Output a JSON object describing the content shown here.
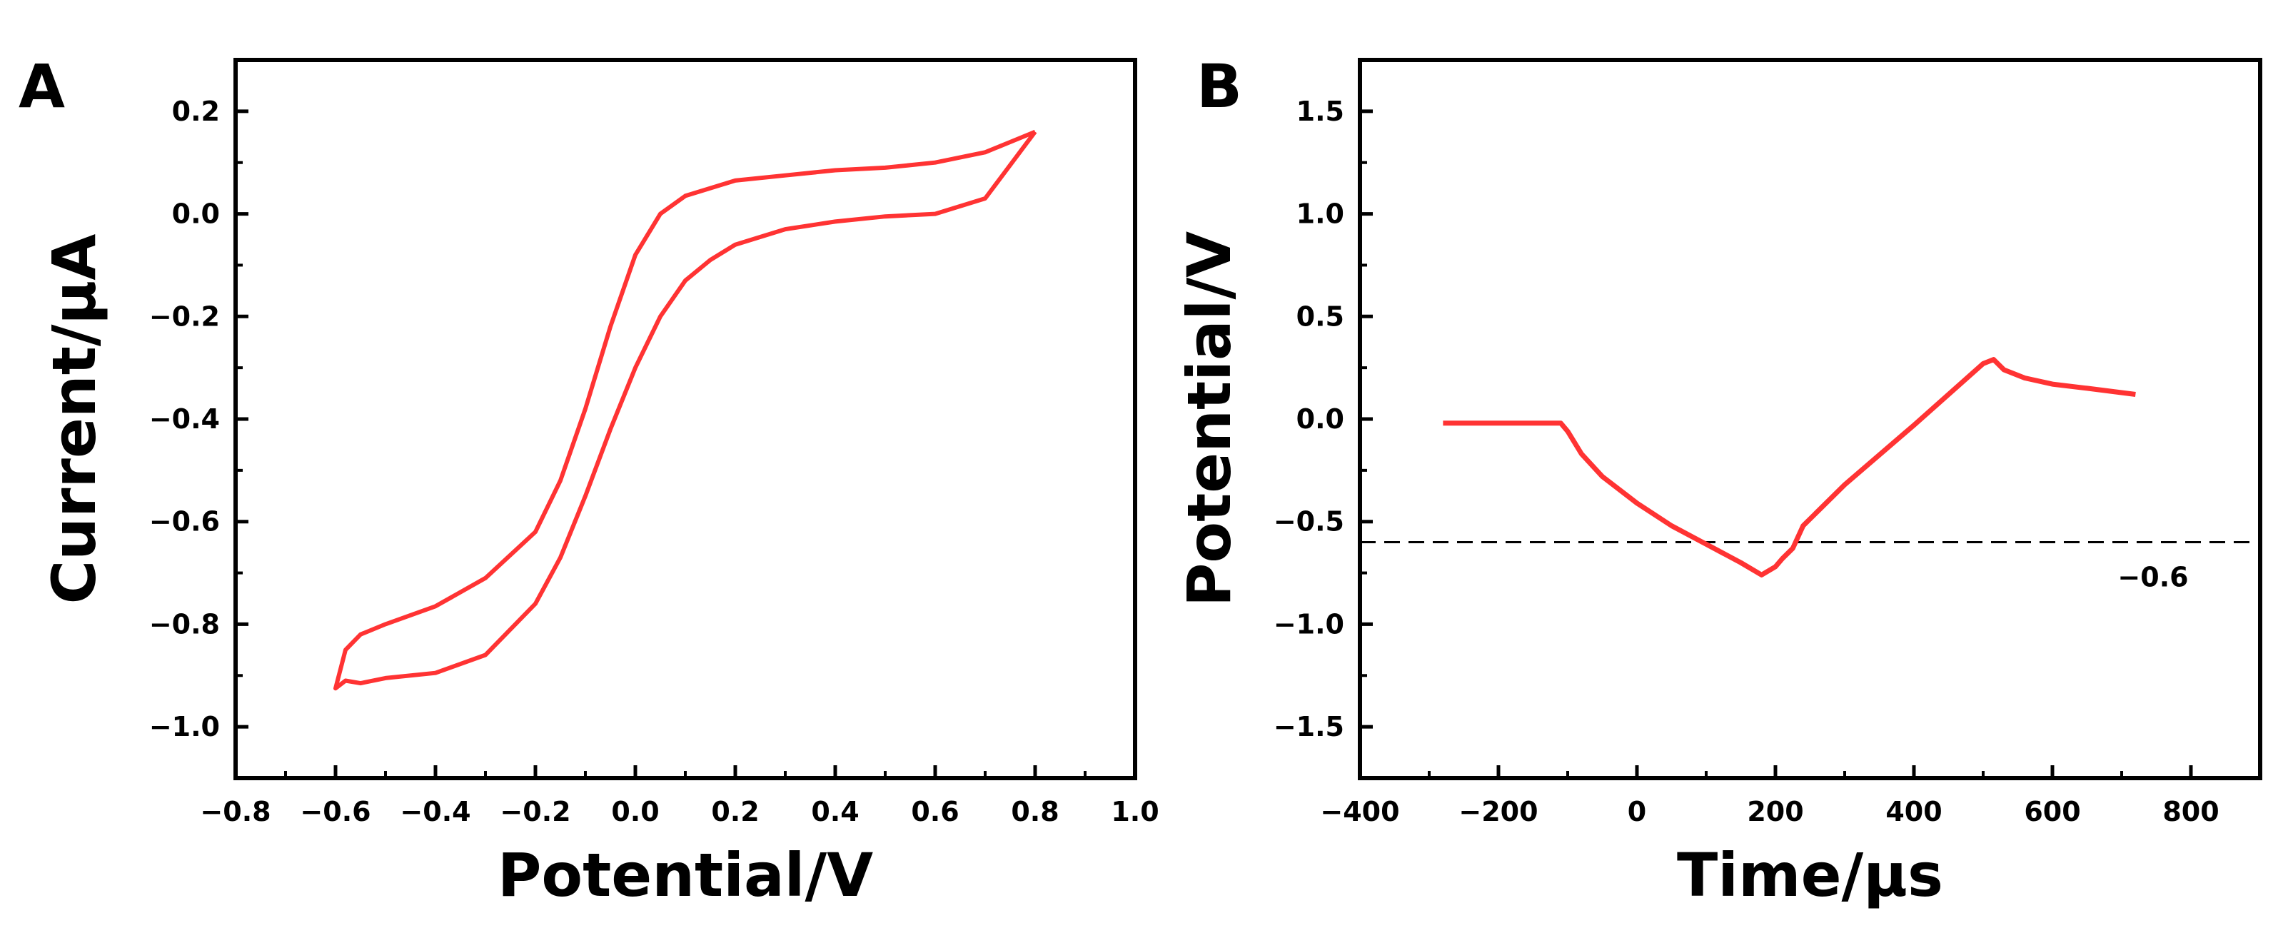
{
  "colors": {
    "trace": "#ff3333",
    "axis": "#000000",
    "reference_line": "#000000"
  },
  "chart_data": [
    {
      "panel": "A",
      "type": "line",
      "xlabel": "Potential/V",
      "ylabel": "Current/μA",
      "xlim": [
        -0.8,
        1.0
      ],
      "ylim": [
        -1.1,
        0.3
      ],
      "xticks": [
        -0.8,
        -0.6,
        -0.4,
        -0.2,
        0.0,
        0.2,
        0.4,
        0.6,
        0.8,
        1.0
      ],
      "xtick_labels": [
        "−0.8",
        "−0.6",
        "−0.4",
        "−0.2",
        "0.0",
        "0.2",
        "0.4",
        "0.6",
        "0.8",
        "1.0"
      ],
      "yticks": [
        0.2,
        0.0,
        -0.2,
        -0.4,
        -0.6,
        -0.8,
        -1.0
      ],
      "ytick_labels": [
        "0.2",
        "0.0",
        "−0.2",
        "−0.4",
        "−0.6",
        "−0.8",
        "−1.0"
      ],
      "grid": false,
      "series": [
        {
          "x": [
            0.8,
            0.7,
            0.6,
            0.5,
            0.4,
            0.3,
            0.2,
            0.15,
            0.1,
            0.05,
            0.0,
            -0.05,
            -0.1,
            -0.15,
            -0.2,
            -0.3,
            -0.4,
            -0.5,
            -0.55,
            -0.58,
            -0.6,
            -0.58,
            -0.55,
            -0.5,
            -0.4,
            -0.3,
            -0.2,
            -0.15,
            -0.1,
            -0.05,
            0.0,
            0.05,
            0.1,
            0.15,
            0.2,
            0.3,
            0.4,
            0.5,
            0.6,
            0.7,
            0.75,
            0.8
          ],
          "y": [
            0.16,
            0.03,
            0.0,
            -0.005,
            -0.015,
            -0.03,
            -0.06,
            -0.09,
            -0.13,
            -0.2,
            -0.3,
            -0.42,
            -0.55,
            -0.67,
            -0.76,
            -0.86,
            -0.895,
            -0.905,
            -0.915,
            -0.91,
            -0.925,
            -0.85,
            -0.82,
            -0.8,
            -0.765,
            -0.71,
            -0.62,
            -0.52,
            -0.38,
            -0.22,
            -0.08,
            0.0,
            0.035,
            0.05,
            0.065,
            0.075,
            0.085,
            0.09,
            0.1,
            0.12,
            0.14,
            0.16
          ]
        }
      ]
    },
    {
      "panel": "B",
      "type": "line",
      "xlabel": "Time/μs",
      "ylabel": "Potential/V",
      "xlim": [
        -400,
        900
      ],
      "ylim": [
        -1.75,
        1.75
      ],
      "xticks": [
        -400,
        -200,
        0,
        200,
        400,
        600,
        800
      ],
      "xtick_labels": [
        "−400",
        "−200",
        "0",
        "200",
        "400",
        "600",
        "800"
      ],
      "yticks": [
        1.5,
        1.0,
        0.5,
        0.0,
        -0.5,
        -1.0,
        -1.5
      ],
      "ytick_labels": [
        "1.5",
        "1.0",
        "0.5",
        "0.0",
        "−0.5",
        "−1.0",
        "−1.5"
      ],
      "grid": false,
      "reference_line": {
        "y": -0.6,
        "label": "−0.6",
        "style": "dashed"
      },
      "series": [
        {
          "x": [
            -280,
            -200,
            -110,
            -100,
            -80,
            -50,
            0,
            50,
            100,
            150,
            180,
            200,
            210,
            225,
            240,
            300,
            400,
            500,
            515,
            530,
            560,
            600,
            650,
            720
          ],
          "y": [
            -0.02,
            -0.02,
            -0.02,
            -0.06,
            -0.17,
            -0.28,
            -0.41,
            -0.52,
            -0.61,
            -0.7,
            -0.76,
            -0.72,
            -0.68,
            -0.63,
            -0.52,
            -0.32,
            -0.03,
            0.27,
            0.29,
            0.24,
            0.2,
            0.17,
            0.15,
            0.12
          ]
        }
      ]
    }
  ]
}
